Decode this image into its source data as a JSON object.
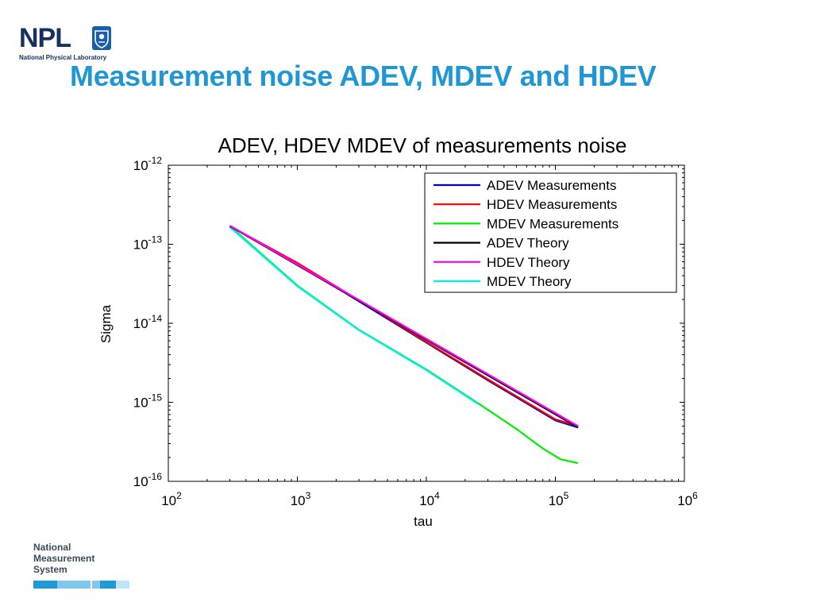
{
  "logo": {
    "letters": "NPL",
    "subtitle": "National Physical Laboratory"
  },
  "slide": {
    "title": "Measurement noise ADEV, MDEV  and HDEV"
  },
  "footer": {
    "lines": [
      "National",
      "Measurement",
      "System"
    ]
  },
  "chart_data": {
    "type": "line",
    "title": "ADEV, HDEV MDEV of measurements noise",
    "xlabel": "tau",
    "ylabel": "Sigma",
    "x_scale": "log",
    "y_scale": "log",
    "xlim": [
      100,
      1000000
    ],
    "ylim": [
      1e-16,
      1e-12
    ],
    "x_ticks": [
      {
        "value": 100,
        "base": "10",
        "exp": "2"
      },
      {
        "value": 1000,
        "base": "10",
        "exp": "3"
      },
      {
        "value": 10000,
        "base": "10",
        "exp": "4"
      },
      {
        "value": 100000,
        "base": "10",
        "exp": "5"
      },
      {
        "value": 1000000,
        "base": "10",
        "exp": "6"
      }
    ],
    "y_ticks": [
      {
        "value": 1e-12,
        "base": "10",
        "exp": "-12"
      },
      {
        "value": 1e-13,
        "base": "10",
        "exp": "-13"
      },
      {
        "value": 1e-14,
        "base": "10",
        "exp": "-14"
      },
      {
        "value": 1e-15,
        "base": "10",
        "exp": "-15"
      },
      {
        "value": 1e-16,
        "base": "10",
        "exp": "-16"
      }
    ],
    "grid": false,
    "legend_position": "top-right",
    "series": [
      {
        "name": "ADEV Measurements",
        "color": "#0000cc",
        "x": [
          300,
          1000,
          3000,
          10000,
          30000,
          100000,
          150000
        ],
        "y": [
          1.7e-13,
          5.7e-14,
          1.9e-14,
          5.7e-15,
          1.9e-15,
          5.9e-16,
          4.8e-16
        ]
      },
      {
        "name": "HDEV Measurements",
        "color": "#ff0000",
        "x": [
          300,
          1000,
          3000,
          10000,
          30000,
          100000,
          150000
        ],
        "y": [
          1.7e-13,
          5.8e-14,
          1.95e-14,
          5.8e-15,
          1.95e-15,
          6.1e-16,
          5e-16
        ]
      },
      {
        "name": "MDEV Measurements",
        "color": "#00ee00",
        "x": [
          300,
          1000,
          3000,
          10000,
          25000,
          50000,
          80000,
          110000,
          150000
        ],
        "y": [
          1.7e-13,
          3e-14,
          8.3e-15,
          2.6e-15,
          9.8e-16,
          4.6e-16,
          2.6e-16,
          1.9e-16,
          1.7e-16
        ]
      },
      {
        "name": "ADEV Theory",
        "color": "#000000",
        "x": [
          300,
          150000
        ],
        "y": [
          1.7e-13,
          4.8e-16
        ]
      },
      {
        "name": "HDEV Theory",
        "color": "#ff00ff",
        "x": [
          300,
          150000
        ],
        "y": [
          1.72e-13,
          5e-16
        ]
      },
      {
        "name": "MDEV Theory",
        "color": "#00eeee",
        "x": [
          300,
          1000,
          3000,
          10000,
          25000
        ],
        "y": [
          1.65e-13,
          2.95e-14,
          8.2e-15,
          2.55e-15,
          9.6e-16
        ]
      }
    ]
  }
}
